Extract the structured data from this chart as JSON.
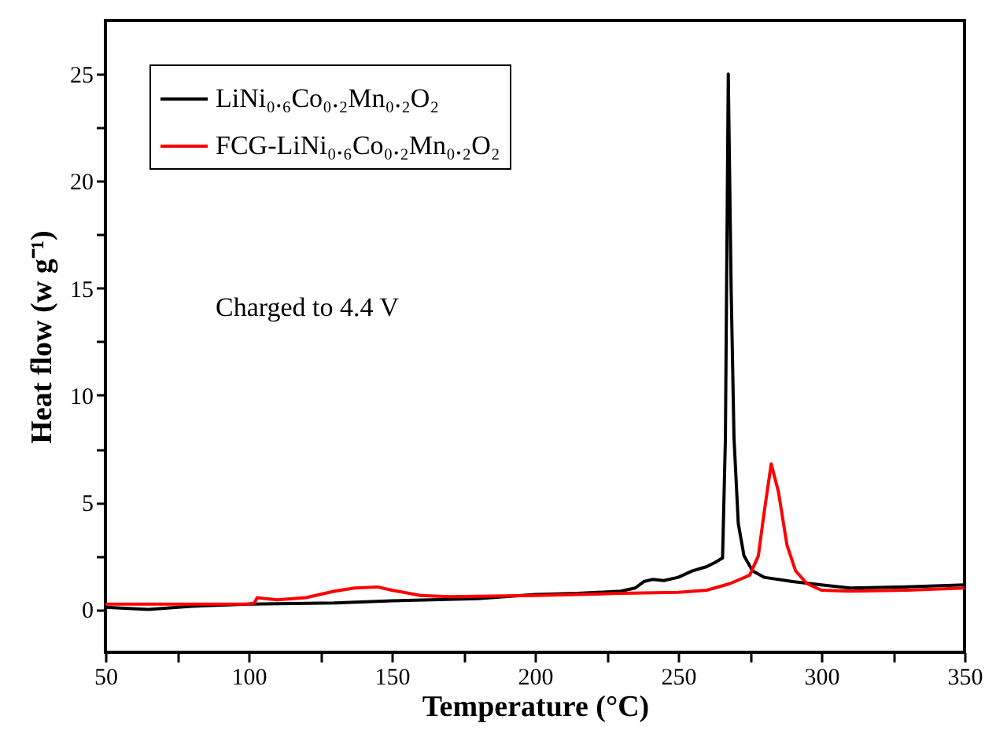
{
  "chart_data": {
    "type": "line",
    "xlabel": "Temperature (°C)",
    "ylabel": "Heat flow (w g⁻¹)",
    "annotations": [
      "Charged to 4.4 V"
    ],
    "xlim": [
      50,
      350
    ],
    "ylim": [
      -2,
      27.5
    ],
    "xticks": [
      50,
      {
        "value": 75,
        "label": null
      },
      100,
      {
        "value": 125,
        "label": null
      },
      150,
      {
        "value": 175,
        "label": null
      },
      200,
      {
        "value": 225,
        "label": null
      },
      250,
      {
        "value": 275,
        "label": null
      },
      300,
      {
        "value": 325,
        "label": null
      },
      350
    ],
    "yticks": [
      0,
      {
        "value": 2.5,
        "label": null
      },
      5,
      {
        "value": 7.5,
        "label": null
      },
      10,
      {
        "value": 12.5,
        "label": null
      },
      15,
      {
        "value": 17.5,
        "label": null
      },
      20,
      {
        "value": 22.5,
        "label": null
      },
      25
    ],
    "legend": "top left",
    "grid": false,
    "marker": "none",
    "line_style": "solid",
    "series": [
      {
        "name": "LiNi₀.₆Co₀.₂Mn₀.₂O₂",
        "color": "#000000",
        "x": [
          50,
          65,
          80,
          100,
          130,
          150,
          180,
          200,
          215,
          230,
          235,
          238,
          241,
          245,
          250,
          255,
          260,
          263,
          265.5,
          266.5,
          267.5,
          268.5,
          269.5,
          271,
          273,
          276,
          280,
          290,
          300,
          310,
          330,
          350
        ],
        "values": [
          0.1,
          0.0,
          0.15,
          0.25,
          0.3,
          0.4,
          0.5,
          0.7,
          0.75,
          0.85,
          1.0,
          1.3,
          1.4,
          1.35,
          1.5,
          1.8,
          2.0,
          2.2,
          2.4,
          8,
          25,
          15,
          8,
          4,
          2.5,
          1.8,
          1.5,
          1.3,
          1.15,
          1.0,
          1.05,
          1.15
        ]
      },
      {
        "name": "FCG-LiNi₀.₆Co₀.₂Mn₀.₂O₂",
        "color": "#ff0000",
        "x": [
          50,
          100,
          102,
          103,
          106,
          110,
          120,
          130,
          137,
          145,
          150,
          160,
          170,
          200,
          230,
          250,
          260,
          268,
          275,
          278,
          280,
          282.5,
          285,
          288,
          291,
          295,
          300,
          310,
          330,
          350
        ],
        "values": [
          0.25,
          0.25,
          0.3,
          0.55,
          0.5,
          0.45,
          0.55,
          0.85,
          1.0,
          1.05,
          0.9,
          0.65,
          0.6,
          0.65,
          0.75,
          0.8,
          0.9,
          1.2,
          1.6,
          2.5,
          4.5,
          6.8,
          5.5,
          3.0,
          1.8,
          1.2,
          0.9,
          0.85,
          0.9,
          1.0
        ]
      }
    ]
  }
}
